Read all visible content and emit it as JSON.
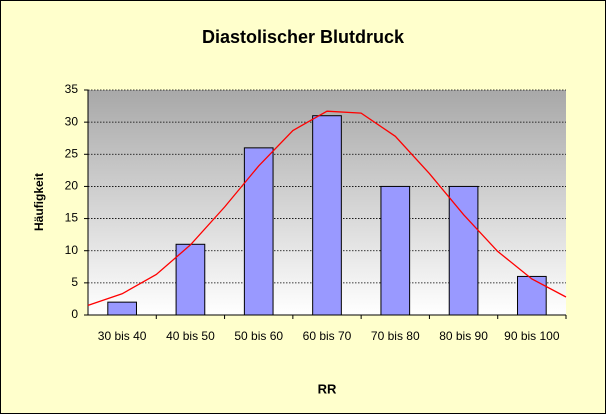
{
  "chart_data": {
    "type": "bar",
    "title": "Diastolischer Blutdruck",
    "x_label": "RR",
    "y_label": "Häufigkeit",
    "categories": [
      "30 bis 40",
      "40 bis 50",
      "50 bis 60",
      "60 bis 70",
      "70 bis 80",
      "80 bis 90",
      "90 bis 100"
    ],
    "values": [
      2,
      11,
      26,
      31,
      20,
      20,
      6
    ],
    "color": "#9999ff",
    "curve": {
      "type": "line",
      "color": "#ff0000",
      "xlim": [
        30,
        100
      ],
      "x": [
        30,
        35,
        40,
        45,
        50,
        55,
        60,
        65,
        70,
        75,
        80,
        85,
        90,
        95,
        100
      ],
      "values": [
        1.5,
        3.3,
        6.3,
        10.9,
        16.8,
        23.2,
        28.7,
        31.7,
        31.4,
        27.8,
        22.0,
        15.6,
        9.9,
        5.6,
        2.8
      ]
    },
    "ylim": [
      0,
      35
    ],
    "yticks": [
      0,
      5,
      10,
      15,
      20,
      25,
      30,
      35
    ],
    "grid": true
  }
}
